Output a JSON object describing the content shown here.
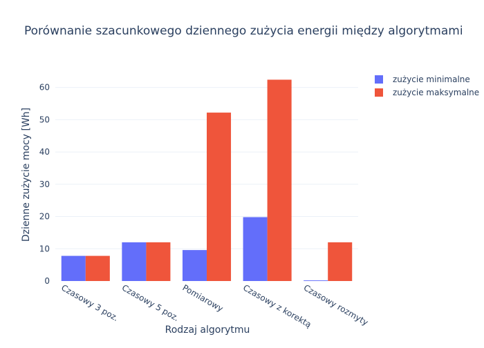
{
  "chart_data": {
    "type": "bar",
    "title": "Porównanie szacunkowego dziennego zużycia energii między algorytmami",
    "xlabel": "Rodzaj algorytmu",
    "ylabel": "Dzienne zużycie mocy [Wh]",
    "categories": [
      "Czasowy 3 poz.",
      "Czasowy 5 poz.",
      "Pomiarowy",
      "Czasowy z korektą",
      "Czasowy rozmyty"
    ],
    "series": [
      {
        "name": "zużycie minimalne",
        "values": [
          7.8,
          12,
          9.6,
          19.8,
          0.2
        ],
        "color": "#636efa"
      },
      {
        "name": "zużycie maksymalne",
        "values": [
          7.8,
          12,
          52.2,
          62.4,
          12
        ],
        "color": "#ef553b"
      }
    ],
    "ylim": [
      0,
      65.7
    ],
    "yticks": [
      0,
      10,
      20,
      30,
      40,
      50,
      60
    ],
    "grid": true,
    "legend_position": "top-right"
  }
}
